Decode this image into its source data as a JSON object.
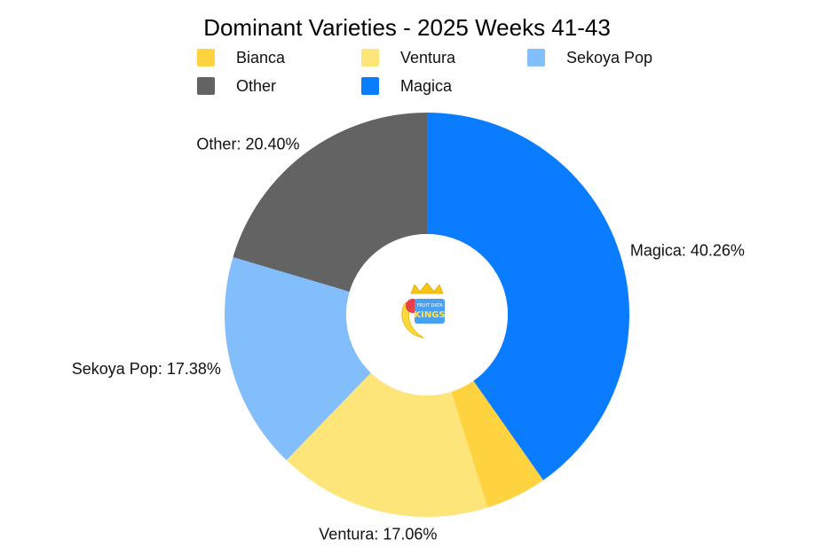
{
  "chart_data": {
    "type": "pie",
    "variant": "donut",
    "title": "Dominant Varieties - 2025 Weeks 41-43",
    "slices": [
      {
        "name": "Magica",
        "value": 40.26,
        "color": "#0A7CFF",
        "label": "Magica: 40.26%"
      },
      {
        "name": "Bianca",
        "value": 4.9,
        "color": "#FFD23F",
        "label": ""
      },
      {
        "name": "Ventura",
        "value": 17.06,
        "color": "#FDE57A",
        "label": "Ventura: 17.06%"
      },
      {
        "name": "Sekoya Pop",
        "value": 17.38,
        "color": "#82BDFC",
        "label": "Sekoya Pop: 17.38%"
      },
      {
        "name": "Other",
        "value": 20.4,
        "color": "#636363",
        "label": "Other: 20.40%"
      }
    ],
    "legend": {
      "placement": "top",
      "items": [
        {
          "name": "Bianca",
          "color": "#FFD23F"
        },
        {
          "name": "Ventura",
          "color": "#FDE57A"
        },
        {
          "name": "Sekoya Pop",
          "color": "#82BDFC"
        },
        {
          "name": "Other",
          "color": "#636363"
        },
        {
          "name": "Magica",
          "color": "#0A7CFF"
        }
      ]
    }
  },
  "logo": {
    "line1": "FRUIT DATA",
    "line2": "KINGS"
  }
}
